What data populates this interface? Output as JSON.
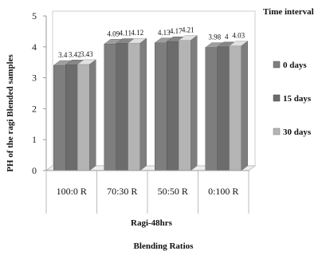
{
  "chart_data": {
    "type": "bar",
    "ylabel": "PH of the ragi Blended samples",
    "xlabel_group": "Ragi-48hrs",
    "xlabel": "Blending Ratios",
    "legend_title": "Time interval",
    "legend_position": "right",
    "categories": [
      "100:0 R",
      "70:30 R",
      "50:50 R",
      "0:100 R"
    ],
    "series": [
      {
        "name": "0 days",
        "values": [
          3.4,
          4.09,
          4.13,
          3.98
        ],
        "labels": [
          "3.4",
          "4.09",
          "4.13",
          "3.98"
        ],
        "color": "#7e7e7e"
      },
      {
        "name": "15 days",
        "values": [
          3.42,
          4.11,
          4.17,
          4
        ],
        "labels": [
          "3.42",
          "4.11",
          "4.17",
          "4"
        ],
        "color": "#6c6c6c"
      },
      {
        "name": "30 days",
        "values": [
          3.43,
          4.12,
          4.21,
          4.03
        ],
        "labels": [
          "3.43",
          "4.12",
          "4.21",
          "4.03"
        ],
        "color": "#b4b4b4"
      }
    ],
    "yticks": [
      0,
      1,
      2,
      3,
      4,
      5
    ],
    "ylim": [
      0,
      5
    ],
    "grid": false
  }
}
